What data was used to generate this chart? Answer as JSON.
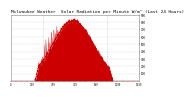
{
  "title": "Milwaukee Weather  Solar Radiation per Minute W/m² (Last 24 Hours)",
  "title_fontsize": 3.2,
  "background_color": "#ffffff",
  "plot_bg_color": "#ffffff",
  "fill_color": "#cc0000",
  "line_color": "#cc0000",
  "grid_color": "#bbbbbb",
  "ylim": [
    0,
    900
  ],
  "yticks": [
    100,
    200,
    300,
    400,
    500,
    600,
    700,
    800,
    900
  ],
  "num_points": 1440,
  "dashed_vlines": [
    360,
    720,
    1080
  ]
}
